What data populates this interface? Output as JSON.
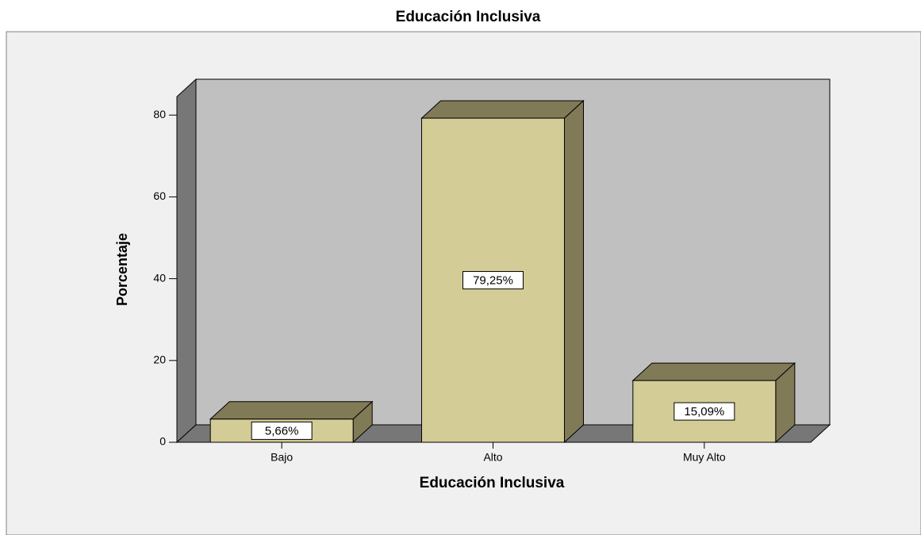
{
  "chart_data": {
    "type": "bar3d",
    "title": "Educación Inclusiva",
    "x_label": "Educación Inclusiva",
    "y_label": "Porcentaje",
    "categories": [
      "Bajo",
      "Alto",
      "Muy Alto"
    ],
    "values": [
      5.66,
      79.25,
      15.09
    ],
    "value_labels": [
      "5,66%",
      "79,25%",
      "15,09%"
    ],
    "color": "#d3cc96",
    "ylim": [
      0,
      84.5
    ],
    "yticks": [
      0,
      20,
      40,
      60,
      80
    ]
  }
}
